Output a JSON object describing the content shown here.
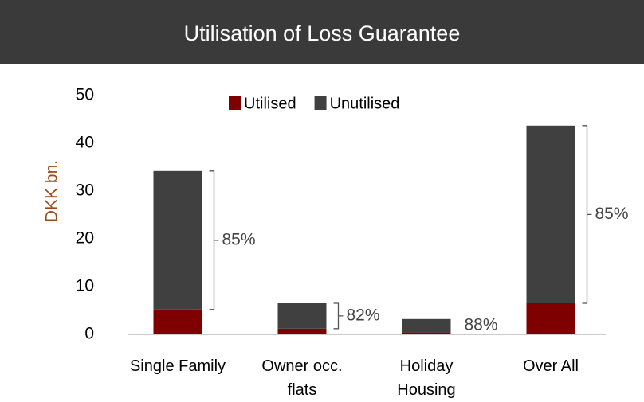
{
  "chart_data": {
    "type": "stacked_bar",
    "title": "Utilisation of Loss Guarantee",
    "y_label": "DKK bn.",
    "categories": [
      [
        "Single Family"
      ],
      [
        "Owner occ.",
        "flats"
      ],
      [
        "Holiday",
        "Housing"
      ],
      [
        "Over All"
      ]
    ],
    "series": [
      {
        "name": "Utilised",
        "color": "#7f0000",
        "values": [
          5.2,
          1.2,
          0.4,
          6.5
        ]
      },
      {
        "name": "Unutilised",
        "color": "#404040",
        "values": [
          29.0,
          5.3,
          2.8,
          37.2
        ]
      }
    ],
    "annotations": [
      "85%",
      "82%",
      "88%",
      "85%"
    ],
    "brackets": [
      true,
      true,
      false,
      true
    ],
    "ylim": [
      0,
      50
    ],
    "yticks": [
      0,
      10,
      20,
      30,
      40,
      50
    ],
    "grid": false,
    "legend": "top"
  }
}
